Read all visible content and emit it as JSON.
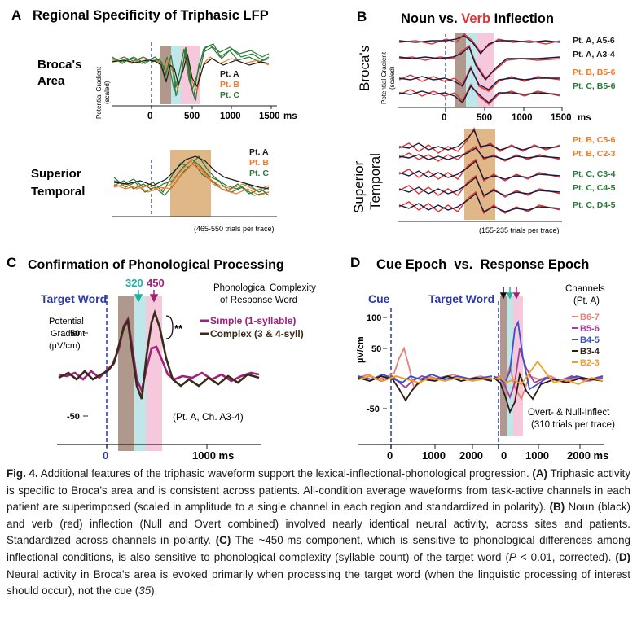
{
  "panels": {
    "A": {
      "letter": "A",
      "title": "Regional Specificity of Triphasic LFP",
      "regions": [
        {
          "label_line1": "Broca's",
          "label_line2": "Area",
          "legend": [
            "Pt. A",
            "Pt. B",
            "Pt. C"
          ]
        },
        {
          "label_line1": "Superior",
          "label_line2": "Temporal",
          "legend": [
            "Pt. A",
            "Pt. B",
            "Pt. C"
          ]
        }
      ],
      "y_label_line1": "Potential Gradient",
      "y_label_line2": "(scaled)",
      "x_ticks": [
        "0",
        "500",
        "1000",
        "1500"
      ],
      "x_unit": "ms",
      "trials_note": "(465-550 trials per trace)"
    },
    "B": {
      "letter": "B",
      "title_part1": "Noun",
      "title_part2": " vs. ",
      "title_part3": "Verb",
      "title_part4": " Inflection",
      "region1_label": "Broca's",
      "region2_label_line1": "Superior",
      "region2_label_line2": "Temporal",
      "y_label_line1": "Potential Gradient",
      "y_label_line2": "(scaled)",
      "x_ticks": [
        "0",
        "500",
        "1000",
        "1500"
      ],
      "x_unit": "ms",
      "traces_top": [
        "Pt. A, A5-6",
        "Pt. A, A3-4",
        "Pt. B, B5-6",
        "Pt. C, B5-6"
      ],
      "traces_bottom": [
        "Pt. B, C5-6",
        "Pt. B, C2-3",
        "Pt. C, C3-4",
        "Pt. C, C4-5",
        "Pt. C, D4-5"
      ],
      "trials_note": "(155-235 trials per trace)"
    },
    "C": {
      "letter": "C",
      "title": "Confirmation of Phonological Processing",
      "target_word": "Target Word",
      "marker1": "320",
      "marker2": "450",
      "legend_title_line1": "Phonological Complexity",
      "legend_title_line2": "of Response Word",
      "legend_simple": "Simple (1-syllable)",
      "legend_complex": "Complex (3 & 4-syll)",
      "significance": "**",
      "y_label_line1": "Potential",
      "y_label_line2": "Gradient",
      "y_label_line3": "(µV/cm)",
      "y_ticks": [
        "50",
        "-50"
      ],
      "x_ticks": [
        "0",
        "1000 ms"
      ],
      "note": "(Pt. A, Ch. A3-4)"
    },
    "D": {
      "letter": "D",
      "title": "Cue Epoch  vs.  Response Epoch",
      "cue_label": "Cue",
      "target_word": "Target Word",
      "channels_title_line1": "Channels",
      "channels_title_line2": "(Pt. A)",
      "channels": [
        "B6-7",
        "B5-6",
        "B4-5",
        "B3-4",
        "B2-3"
      ],
      "channel_colors": [
        "#e8807a",
        "#a0409a",
        "#3a50c8",
        "#2a1a10",
        "#f0a020"
      ],
      "y_label": "µV/cm",
      "y_ticks": [
        "100",
        "50",
        "-50"
      ],
      "x_ticks_cue": [
        "0",
        "1000",
        "2000"
      ],
      "x_ticks_resp": [
        "0",
        "1000",
        "2000 ms"
      ],
      "note_line1": "Overt- & Null-Inflect",
      "note_line2": "(310 trials per trace)"
    }
  },
  "caption": {
    "fig_label": "Fig. 4.",
    "intro": " Additional features of the triphasic waveform support the lexical-inflectional-phonological progression. ",
    "a_label": "(A)",
    "a_text": " Triphasic activity is specific to Broca’s area and is consistent across patients. All-condition average waveforms from task-active channels in each patient are superimposed (scaled in amplitude to a single channel in each region and standardized in polarity). ",
    "b_label": "(B)",
    "b_text": " Noun (black) and verb (red) inflection (Null and Overt combined) involved nearly identical neural activity, across sites and patients. Standardized across channels in polarity. ",
    "c_label": "(C)",
    "c_text": " The ~450-ms component, which is sensitive to phonological differences among inflectional conditions, is also sensitive to phonological complexity (syllable count) of the target word (",
    "c_p": "P",
    "c_text2": " < 0.01, corrected). ",
    "d_label": "(D)",
    "d_text": " Neural activity in Broca’s area is evoked primarily when processing the target word (when the linguistic processing of interest should occur), not the cue (",
    "d_ref": "35",
    "d_end": ")."
  },
  "colors": {
    "black_trace": "#1a1a1a",
    "orange_trace": "#f07a2a",
    "green_trace": "#2a7a3a",
    "red_trace": "#e03030",
    "navy_trace": "#1a1a40",
    "purple_trace": "#a0207a",
    "brown_trace": "#3a2a1a",
    "blue_axis_label": "#2a3aa0",
    "teal_marker": "#20b0a0",
    "purple_marker": "#a0207a",
    "band_brown": "#b0988c",
    "band_cyan": "#bfe6e8",
    "band_pink": "#f5c8dc",
    "band_tan": "#e0b888"
  }
}
